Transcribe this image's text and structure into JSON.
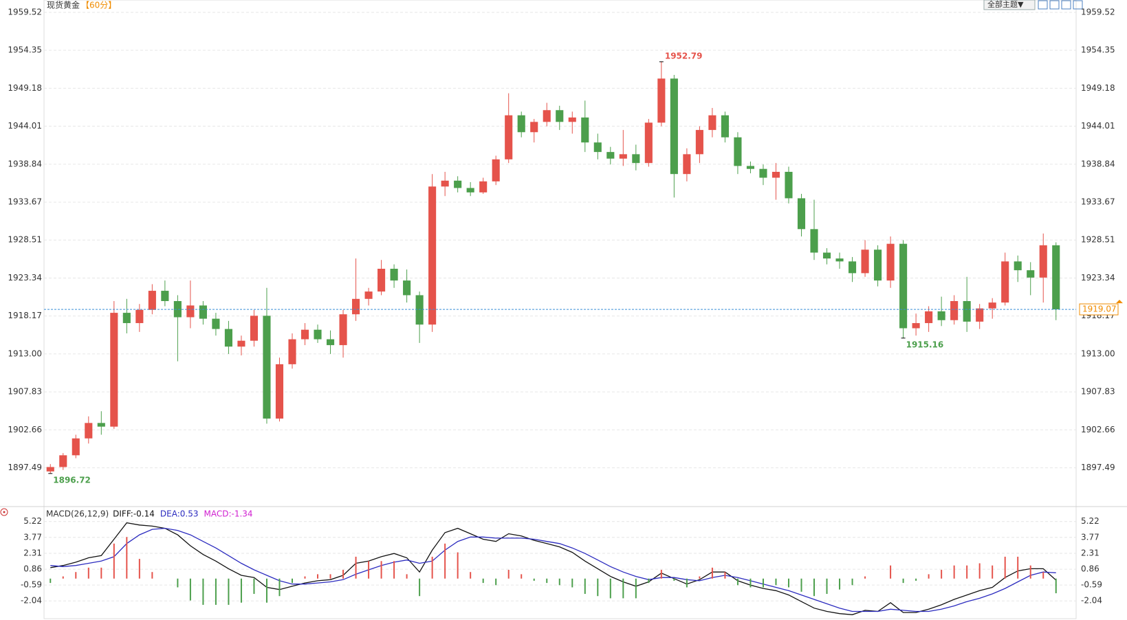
{
  "chart_data": [
    {
      "type": "candlestick",
      "title": "现货黄金",
      "subtitle": "【60分】",
      "menu": "全部主题▼",
      "up_color": "#e5534b",
      "down_color": "#4c9f4c",
      "grid": true,
      "ylim": [
        1892.4,
        1961.2
      ],
      "yticks": [
        1959.52,
        1954.35,
        1949.18,
        1944.01,
        1938.84,
        1933.67,
        1928.51,
        1923.34,
        1918.17,
        {
          "value": 1913,
          "label": "1913.00"
        },
        1907.83,
        1902.66,
        1897.49
      ],
      "high_label": 1952.79,
      "low_labels": [
        1896.72,
        1915.16
      ],
      "last_price": 1919.07,
      "ohlc": [
        [
          1897.0,
          1898.0,
          1896.72,
          1897.6
        ],
        [
          1897.6,
          1899.5,
          1897.2,
          1899.2
        ],
        [
          1899.2,
          1902.0,
          1898.8,
          1901.5
        ],
        [
          1901.5,
          1904.5,
          1900.8,
          1903.6
        ],
        [
          1903.6,
          1905.2,
          1902.0,
          1903.1
        ],
        [
          1903.1,
          1920.2,
          1902.8,
          1918.6
        ],
        [
          1918.6,
          1920.5,
          1915.8,
          1917.2
        ],
        [
          1917.2,
          1919.8,
          1916.0,
          1919.0
        ],
        [
          1919.0,
          1922.5,
          1918.4,
          1921.6
        ],
        [
          1921.6,
          1923.0,
          1919.5,
          1920.2
        ],
        [
          1920.2,
          1921.0,
          1912.0,
          1918.0
        ],
        [
          1918.0,
          1923.0,
          1916.5,
          1919.6
        ],
        [
          1919.6,
          1920.2,
          1917.0,
          1917.8
        ],
        [
          1917.8,
          1918.6,
          1915.5,
          1916.4
        ],
        [
          1916.4,
          1917.5,
          1913.0,
          1914.0
        ],
        [
          1914.0,
          1915.5,
          1912.8,
          1914.8
        ],
        [
          1914.8,
          1919.0,
          1914.0,
          1918.2
        ],
        [
          1918.2,
          1922.0,
          1903.5,
          1904.2
        ],
        [
          1904.2,
          1912.5,
          1903.8,
          1911.6
        ],
        [
          1911.6,
          1915.8,
          1911.0,
          1915.0
        ],
        [
          1915.0,
          1917.2,
          1914.2,
          1916.3
        ],
        [
          1916.3,
          1917.0,
          1914.5,
          1915.0
        ],
        [
          1915.0,
          1916.2,
          1913.0,
          1914.2
        ],
        [
          1914.2,
          1919.0,
          1912.5,
          1918.4
        ],
        [
          1918.4,
          1926.0,
          1917.5,
          1920.5
        ],
        [
          1920.5,
          1922.0,
          1919.6,
          1921.5
        ],
        [
          1921.5,
          1925.8,
          1921.0,
          1924.6
        ],
        [
          1924.6,
          1925.2,
          1922.0,
          1923.0
        ],
        [
          1923.0,
          1924.5,
          1920.0,
          1921.0
        ],
        [
          1921.0,
          1921.5,
          1914.5,
          1917.0
        ],
        [
          1917.0,
          1937.5,
          1916.0,
          1935.8
        ],
        [
          1935.8,
          1937.8,
          1934.5,
          1936.6
        ],
        [
          1936.6,
          1937.2,
          1935.0,
          1935.6
        ],
        [
          1935.6,
          1936.4,
          1934.5,
          1935.0
        ],
        [
          1935.0,
          1937.0,
          1934.8,
          1936.5
        ],
        [
          1936.5,
          1940.0,
          1936.0,
          1939.5
        ],
        [
          1939.5,
          1948.5,
          1939.0,
          1945.5
        ],
        [
          1945.5,
          1946.0,
          1942.5,
          1943.2
        ],
        [
          1943.2,
          1945.0,
          1941.8,
          1944.6
        ],
        [
          1944.6,
          1947.2,
          1944.0,
          1946.2
        ],
        [
          1946.2,
          1946.8,
          1943.5,
          1944.6
        ],
        [
          1944.6,
          1946.0,
          1943.0,
          1945.2
        ],
        [
          1945.2,
          1947.5,
          1940.5,
          1941.8
        ],
        [
          1941.8,
          1943.0,
          1939.5,
          1940.5
        ],
        [
          1940.5,
          1941.2,
          1938.8,
          1939.6
        ],
        [
          1939.6,
          1943.5,
          1938.6,
          1940.2
        ],
        [
          1940.2,
          1941.5,
          1938.0,
          1939.0
        ],
        [
          1939.0,
          1945.0,
          1938.5,
          1944.5
        ],
        [
          1944.5,
          1952.79,
          1944.0,
          1950.5
        ],
        [
          1950.5,
          1951.0,
          1934.3,
          1937.5
        ],
        [
          1937.5,
          1941.0,
          1936.5,
          1940.2
        ],
        [
          1940.2,
          1944.0,
          1939.0,
          1943.5
        ],
        [
          1943.5,
          1946.5,
          1942.5,
          1945.5
        ],
        [
          1945.5,
          1946.0,
          1941.8,
          1942.5
        ],
        [
          1942.5,
          1943.2,
          1937.5,
          1938.6
        ],
        [
          1938.6,
          1939.2,
          1937.6,
          1938.2
        ],
        [
          1938.2,
          1938.8,
          1936.0,
          1937.0
        ],
        [
          1937.0,
          1939.0,
          1934.0,
          1937.8
        ],
        [
          1937.8,
          1938.5,
          1933.5,
          1934.2
        ],
        [
          1934.2,
          1934.8,
          1929.0,
          1930.0
        ],
        [
          1930.0,
          1934.0,
          1925.8,
          1926.8
        ],
        [
          1926.8,
          1927.4,
          1925.2,
          1926.0
        ],
        [
          1926.0,
          1926.8,
          1924.6,
          1925.6
        ],
        [
          1925.6,
          1926.2,
          1922.8,
          1924.0
        ],
        [
          1924.0,
          1928.5,
          1923.5,
          1927.2
        ],
        [
          1927.2,
          1927.8,
          1922.2,
          1923.0
        ],
        [
          1923.0,
          1929.0,
          1922.0,
          1928.0
        ],
        [
          1928.0,
          1928.5,
          1915.16,
          1916.5
        ],
        [
          1916.5,
          1918.5,
          1915.5,
          1917.2
        ],
        [
          1917.2,
          1919.5,
          1916.0,
          1918.8
        ],
        [
          1918.8,
          1920.8,
          1916.8,
          1917.6
        ],
        [
          1917.6,
          1921.0,
          1917.0,
          1920.2
        ],
        [
          1920.2,
          1923.5,
          1916.0,
          1917.4
        ],
        [
          1917.4,
          1919.8,
          1916.4,
          1919.2
        ],
        [
          1919.2,
          1920.6,
          1917.8,
          1920.0
        ],
        [
          1920.0,
          1926.8,
          1919.6,
          1925.6
        ],
        [
          1925.6,
          1926.4,
          1922.8,
          1924.4
        ],
        [
          1924.4,
          1925.5,
          1921.0,
          1923.4
        ],
        [
          1923.4,
          1929.4,
          1920.0,
          1927.8
        ],
        [
          1927.8,
          1928.2,
          1917.6,
          1919.07
        ]
      ]
    },
    {
      "type": "macd",
      "title": "MACD(26,12,9)",
      "up_color": "#e5534b",
      "down_color": "#4c9f4c",
      "ylim": [
        -3.66,
        6.52
      ],
      "yticks": [
        5.22,
        3.77,
        2.31,
        0.86,
        -0.59,
        -2.04
      ],
      "series": [
        {
          "name": "DIFF:-0.14",
          "kind": "line",
          "color": "#111111",
          "values": [
            1.0,
            1.2,
            1.5,
            1.9,
            2.1,
            3.6,
            5.1,
            4.9,
            4.8,
            4.6,
            4.0,
            3.0,
            2.2,
            1.6,
            0.9,
            0.3,
            0.1,
            -0.8,
            -1.0,
            -0.7,
            -0.4,
            -0.2,
            -0.1,
            0.3,
            1.4,
            1.6,
            2.0,
            2.3,
            1.9,
            0.6,
            2.6,
            4.2,
            4.6,
            4.1,
            3.6,
            3.4,
            4.1,
            3.9,
            3.5,
            3.2,
            2.9,
            2.4,
            1.6,
            0.9,
            0.2,
            -0.3,
            -0.7,
            -0.3,
            0.5,
            0.0,
            -0.5,
            -0.1,
            0.6,
            0.6,
            -0.2,
            -0.6,
            -0.9,
            -1.1,
            -1.5,
            -2.1,
            -2.7,
            -3.0,
            -3.2,
            -3.3,
            -2.9,
            -3.0,
            -2.2,
            -3.1,
            -3.1,
            -2.8,
            -2.4,
            -1.9,
            -1.5,
            -1.1,
            -0.8,
            0.1,
            0.7,
            0.9,
            0.9,
            -0.14
          ]
        },
        {
          "name": "DEA:0.53",
          "kind": "line",
          "color": "#2b2bbf",
          "values": [
            1.2,
            1.1,
            1.2,
            1.4,
            1.6,
            2.0,
            3.2,
            4.0,
            4.5,
            4.6,
            4.4,
            4.0,
            3.4,
            2.8,
            2.1,
            1.4,
            0.8,
            0.3,
            -0.2,
            -0.5,
            -0.5,
            -0.4,
            -0.3,
            -0.1,
            0.4,
            0.8,
            1.2,
            1.5,
            1.7,
            1.4,
            1.6,
            2.6,
            3.4,
            3.8,
            3.8,
            3.7,
            3.7,
            3.7,
            3.6,
            3.4,
            3.2,
            2.8,
            2.3,
            1.7,
            1.1,
            0.6,
            0.2,
            -0.1,
            0.1,
            0.1,
            -0.1,
            -0.2,
            0.1,
            0.3,
            0.1,
            -0.2,
            -0.5,
            -0.8,
            -1.1,
            -1.5,
            -1.9,
            -2.3,
            -2.7,
            -3.0,
            -3.0,
            -3.0,
            -2.8,
            -2.9,
            -3.0,
            -3.0,
            -2.8,
            -2.5,
            -2.1,
            -1.8,
            -1.4,
            -0.9,
            -0.3,
            0.3,
            0.6,
            0.53
          ]
        },
        {
          "name": "MACD:-1.34",
          "kind": "histogram",
          "color": "#d020d0",
          "values": [
            -0.4,
            0.2,
            0.6,
            1.0,
            1.0,
            3.2,
            3.8,
            1.8,
            0.6,
            0.0,
            -0.8,
            -2.0,
            -2.4,
            -2.4,
            -2.4,
            -2.2,
            -1.4,
            -2.2,
            -1.6,
            -0.4,
            0.2,
            0.4,
            0.4,
            0.8,
            2.0,
            1.6,
            1.6,
            1.6,
            0.4,
            -1.6,
            2.0,
            3.2,
            2.4,
            0.6,
            -0.4,
            -0.6,
            0.8,
            0.4,
            -0.2,
            -0.4,
            -0.6,
            -0.8,
            -1.4,
            -1.6,
            -1.8,
            -1.8,
            -1.8,
            -0.4,
            0.8,
            -0.2,
            -0.8,
            0.2,
            1.0,
            0.6,
            -0.6,
            -0.8,
            -0.8,
            -0.6,
            -0.8,
            -1.2,
            -1.6,
            -1.4,
            -1.0,
            -0.6,
            0.2,
            0.0,
            1.2,
            -0.4,
            -0.2,
            0.4,
            0.8,
            1.2,
            1.2,
            1.4,
            1.2,
            2.0,
            2.0,
            1.2,
            0.6,
            -1.34
          ]
        }
      ]
    }
  ]
}
